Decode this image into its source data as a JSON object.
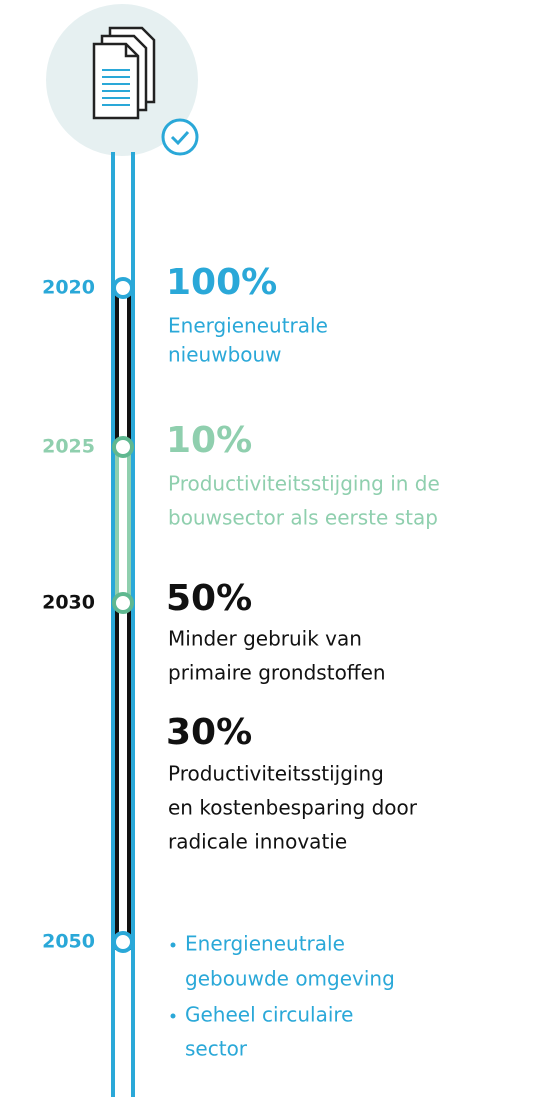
{
  "milestones": [
    {
      "year": "2020",
      "items": [
        {
          "value": "100%",
          "lines": [
            "Energieneutrale",
            "nieuwbouw"
          ]
        }
      ]
    },
    {
      "year": "2025",
      "items": [
        {
          "value": "10%",
          "lines": [
            "Productiviteitsstijging in de",
            "bouwsector als eerste stap"
          ]
        }
      ]
    },
    {
      "year": "2030",
      "items": [
        {
          "value": "50%",
          "lines": [
            "Minder gebruik van",
            "primaire grondstoffen"
          ]
        },
        {
          "value": "30%",
          "lines": [
            "Productiviteitsstijging",
            "en kostenbesparing door",
            "radicale innovatie"
          ]
        }
      ]
    },
    {
      "year": "2050",
      "bullets": [
        [
          "Energieneutrale",
          "gebouwde omgeving"
        ],
        [
          "Geheel circulaire",
          "sector"
        ]
      ]
    }
  ]
}
